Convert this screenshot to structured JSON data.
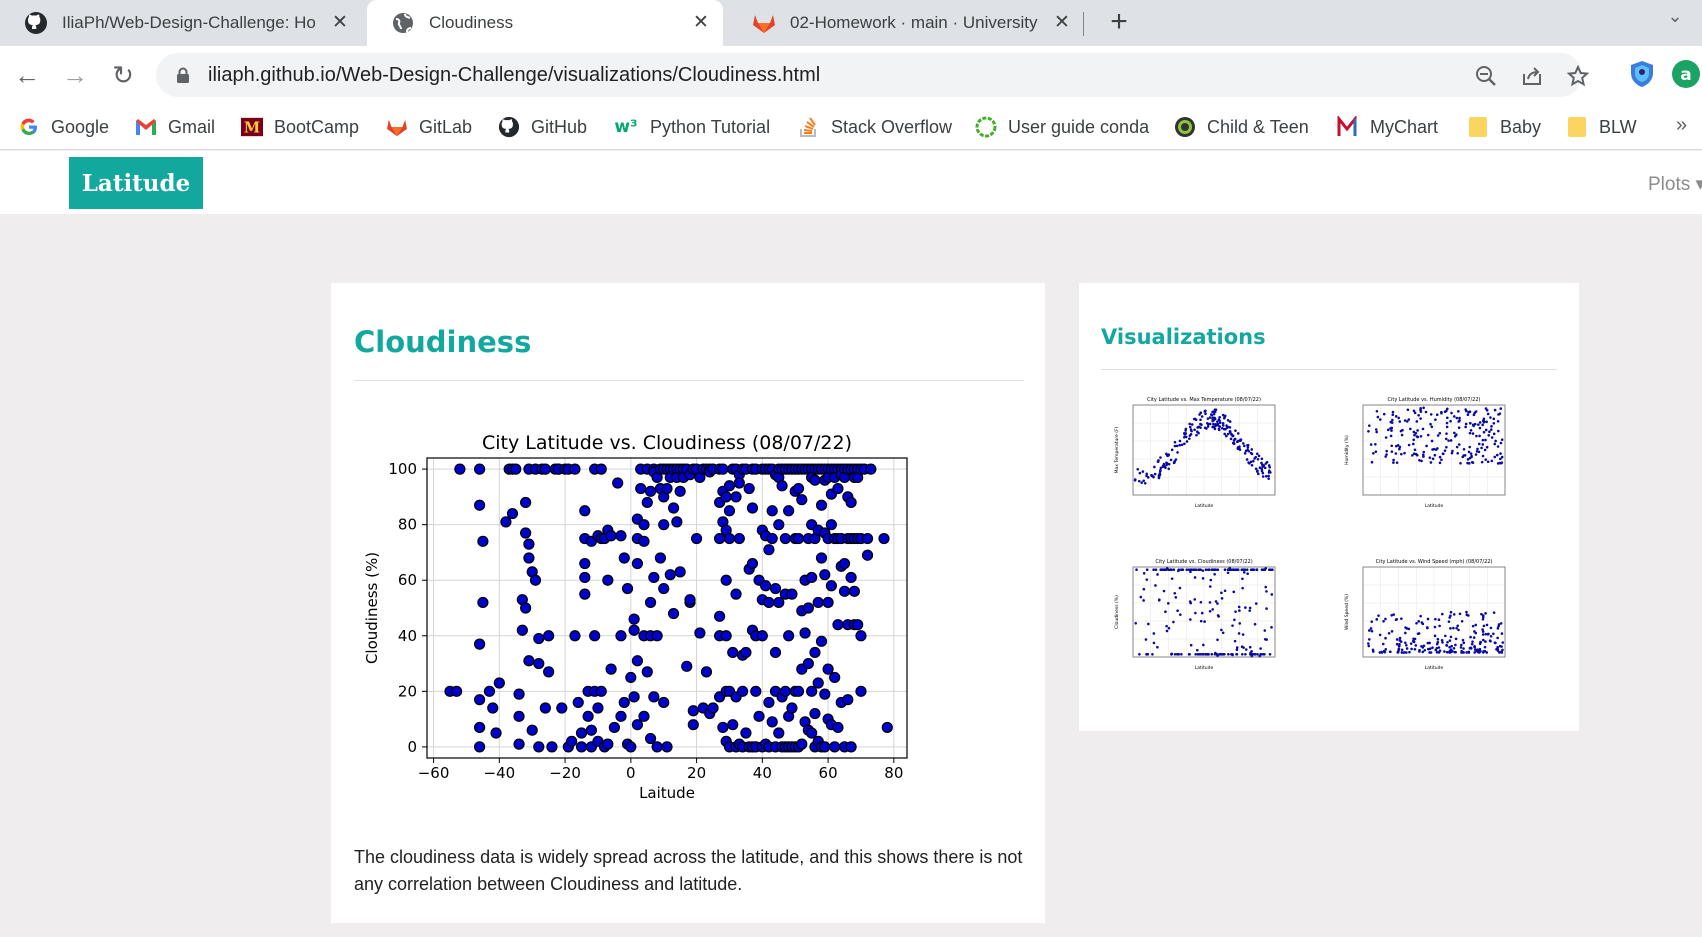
{
  "browser": {
    "tabs": [
      {
        "title": "IliaPh/Web-Design-Challenge: Ho",
        "favicon": "github-icon",
        "active": false
      },
      {
        "title": "Cloudiness",
        "favicon": "globe-icon",
        "active": true
      },
      {
        "title": "02-Homework · main · University",
        "favicon": "gitlab-icon",
        "active": false
      }
    ],
    "new_tab": "+",
    "url_host": "iliaph.github.io",
    "url_path": "/Web-Design-Challenge/visualizations/Cloudiness.html",
    "bookmarks": [
      {
        "label": "Google",
        "icon": "google-icon"
      },
      {
        "label": "Gmail",
        "icon": "gmail-icon"
      },
      {
        "label": "BootCamp",
        "icon": "umn-icon"
      },
      {
        "label": "GitLab",
        "icon": "gitlab-icon"
      },
      {
        "label": "GitHub",
        "icon": "github-icon"
      },
      {
        "label": "Python Tutorial",
        "icon": "w3-icon"
      },
      {
        "label": "Stack Overflow",
        "icon": "stackoverflow-icon"
      },
      {
        "label": "User guide conda",
        "icon": "conda-icon"
      },
      {
        "label": "Child & Teen",
        "icon": "child-teen-icon"
      },
      {
        "label": "MyChart",
        "icon": "mychart-icon"
      },
      {
        "label": "Baby",
        "icon": "folder-icon"
      },
      {
        "label": "BLW",
        "icon": "folder-icon"
      }
    ],
    "bookmarks_more": "»"
  },
  "site": {
    "brand": "Latitude",
    "nav_plots": "Plots ▾",
    "accent": "#13a89e"
  },
  "main": {
    "title": "Cloudiness",
    "description": "The cloudiness data is widely spread across the latitude, and this shows there is not any correlation between Cloudiness and latitude."
  },
  "sidebar": {
    "title": "Visualizations",
    "thumbnails": [
      {
        "title": "City Latitude vs. Max Temperature (08/07/22)",
        "ylabel": "Max Temperature (F)",
        "xlabel": "Latitude"
      },
      {
        "title": "City Latitude vs. Humidity (08/07/22)",
        "ylabel": "Humidity (%)",
        "xlabel": "Latitude"
      },
      {
        "title": "City Latitude vs. Cloudiness (08/07/22)",
        "ylabel": "Cloudiness (%)",
        "xlabel": "Latitude"
      },
      {
        "title": "City Latitude vs. Wind Speed (mph) (08/07/22)",
        "ylabel": "Wind Speed (%)",
        "xlabel": "Latitude"
      }
    ]
  },
  "chart_data": {
    "type": "scatter",
    "title": "City Latitude vs. Cloudiness (08/07/22)",
    "xlabel": "Laitude",
    "ylabel": "Cloudiness (%)",
    "xlim": [
      -62,
      84
    ],
    "ylim": [
      -4,
      104
    ],
    "xticks": [
      -60,
      -40,
      -20,
      0,
      20,
      40,
      60,
      80
    ],
    "yticks": [
      0,
      20,
      40,
      60,
      80,
      100
    ],
    "grid": true,
    "marker_color": "#0000cd",
    "edge_color": "#000000",
    "points": [
      [
        -55,
        20
      ],
      [
        -53,
        20
      ],
      [
        -52,
        100
      ],
      [
        -46,
        100
      ],
      [
        -46,
        87
      ],
      [
        -45,
        74
      ],
      [
        -45,
        52
      ],
      [
        -46,
        37
      ],
      [
        -46,
        17
      ],
      [
        -46,
        7
      ],
      [
        -46,
        0
      ],
      [
        -43,
        20
      ],
      [
        -42,
        14
      ],
      [
        -41,
        5
      ],
      [
        -40,
        23
      ],
      [
        -38,
        81
      ],
      [
        -37,
        100
      ],
      [
        -36,
        100
      ],
      [
        -36,
        84
      ],
      [
        -35,
        100
      ],
      [
        -34,
        19
      ],
      [
        -34,
        11
      ],
      [
        -34,
        1
      ],
      [
        -33,
        53
      ],
      [
        -33,
        42
      ],
      [
        -32,
        88
      ],
      [
        -32,
        77
      ],
      [
        -32,
        50
      ],
      [
        -31,
        100
      ],
      [
        -31,
        73
      ],
      [
        -31,
        68
      ],
      [
        -31,
        31
      ],
      [
        -30,
        63
      ],
      [
        -30,
        6
      ],
      [
        -29,
        100
      ],
      [
        -29,
        60
      ],
      [
        -28,
        39
      ],
      [
        -28,
        30
      ],
      [
        -28,
        0
      ],
      [
        -27,
        100
      ],
      [
        -26,
        100
      ],
      [
        -26,
        14
      ],
      [
        -25,
        40
      ],
      [
        -25,
        27
      ],
      [
        -24,
        0
      ],
      [
        -23,
        100
      ],
      [
        -22,
        100
      ],
      [
        -22,
        100
      ],
      [
        -21,
        14
      ],
      [
        -20,
        100
      ],
      [
        -19,
        100
      ],
      [
        -19,
        0
      ],
      [
        -18,
        2
      ],
      [
        -17,
        100
      ],
      [
        -17,
        40
      ],
      [
        -16,
        16
      ],
      [
        -15,
        5
      ],
      [
        -15,
        0
      ],
      [
        -14,
        85
      ],
      [
        -14,
        75
      ],
      [
        -14,
        66
      ],
      [
        -14,
        61
      ],
      [
        -14,
        55
      ],
      [
        -13,
        20
      ],
      [
        -13,
        11
      ],
      [
        -12,
        74
      ],
      [
        -12,
        6
      ],
      [
        -12,
        0
      ],
      [
        -11,
        100
      ],
      [
        -11,
        40
      ],
      [
        -11,
        20
      ],
      [
        -10,
        76
      ],
      [
        -10,
        14
      ],
      [
        -10,
        2
      ],
      [
        -9,
        100
      ],
      [
        -9,
        75
      ],
      [
        -9,
        20
      ],
      [
        -8,
        75
      ],
      [
        -8,
        0
      ],
      [
        -7,
        78
      ],
      [
        -7,
        60
      ],
      [
        -7,
        1
      ],
      [
        -6,
        76
      ],
      [
        -6,
        28
      ],
      [
        -5,
        7
      ],
      [
        -4,
        95
      ],
      [
        -3,
        76
      ],
      [
        -3,
        40
      ],
      [
        -3,
        11
      ],
      [
        -2,
        68
      ],
      [
        -2,
        16
      ],
      [
        -1,
        57
      ],
      [
        -1,
        1
      ],
      [
        0,
        25
      ],
      [
        0,
        0
      ],
      [
        1,
        46
      ],
      [
        1,
        42
      ],
      [
        1,
        18
      ],
      [
        2,
        82
      ],
      [
        2,
        75
      ],
      [
        2,
        66
      ],
      [
        2,
        31
      ],
      [
        2,
        8
      ],
      [
        3,
        100
      ],
      [
        3,
        93
      ],
      [
        4,
        80
      ],
      [
        4,
        74
      ],
      [
        4,
        40
      ],
      [
        4,
        11
      ],
      [
        5,
        100
      ],
      [
        5,
        88
      ],
      [
        5,
        27
      ],
      [
        6,
        92
      ],
      [
        6,
        52
      ],
      [
        6,
        40
      ],
      [
        6,
        3
      ],
      [
        7,
        100
      ],
      [
        7,
        99
      ],
      [
        7,
        61
      ],
      [
        7,
        18
      ],
      [
        8,
        97
      ],
      [
        8,
        40
      ],
      [
        8,
        0
      ],
      [
        9,
        100
      ],
      [
        9,
        93
      ],
      [
        9,
        68
      ],
      [
        10,
        100
      ],
      [
        10,
        90
      ],
      [
        10,
        80
      ],
      [
        10,
        57
      ],
      [
        10,
        16
      ],
      [
        11,
        100
      ],
      [
        11,
        93
      ],
      [
        11,
        0
      ],
      [
        12,
        100
      ],
      [
        12,
        97
      ],
      [
        12,
        62
      ],
      [
        13,
        100
      ],
      [
        13,
        86
      ],
      [
        13,
        48
      ],
      [
        14,
        100
      ],
      [
        14,
        97
      ],
      [
        14,
        81
      ],
      [
        15,
        100
      ],
      [
        15,
        92
      ],
      [
        15,
        63
      ],
      [
        16,
        100
      ],
      [
        16,
        97
      ],
      [
        17,
        100
      ],
      [
        17,
        29
      ],
      [
        18,
        98
      ],
      [
        18,
        52
      ],
      [
        18,
        53
      ],
      [
        19,
        100
      ],
      [
        19,
        13
      ],
      [
        19,
        8
      ],
      [
        20,
        100
      ],
      [
        20,
        75
      ],
      [
        21,
        97
      ],
      [
        21,
        41
      ],
      [
        22,
        100
      ],
      [
        22,
        14
      ],
      [
        23,
        100
      ],
      [
        23,
        27
      ],
      [
        24,
        100
      ],
      [
        24,
        99
      ],
      [
        24,
        12
      ],
      [
        25,
        100
      ],
      [
        25,
        14
      ],
      [
        27,
        100
      ],
      [
        27,
        88
      ],
      [
        27,
        75
      ],
      [
        27,
        47
      ],
      [
        27,
        40
      ],
      [
        27,
        18
      ],
      [
        28,
        100
      ],
      [
        28,
        92
      ],
      [
        28,
        81
      ],
      [
        28,
        7
      ],
      [
        29,
        90
      ],
      [
        29,
        78
      ],
      [
        29,
        60
      ],
      [
        29,
        40
      ],
      [
        29,
        20
      ],
      [
        29,
        2
      ],
      [
        30,
        94
      ],
      [
        30,
        85
      ],
      [
        30,
        75
      ],
      [
        30,
        20
      ],
      [
        30,
        0
      ],
      [
        31,
        100
      ],
      [
        31,
        34
      ],
      [
        31,
        8
      ],
      [
        32,
        100
      ],
      [
        32,
        90
      ],
      [
        32,
        55
      ],
      [
        32,
        18
      ],
      [
        32,
        0
      ],
      [
        33,
        98
      ],
      [
        33,
        95
      ],
      [
        33,
        75
      ],
      [
        33,
        1
      ],
      [
        34,
        100
      ],
      [
        34,
        33
      ],
      [
        34,
        20
      ],
      [
        34,
        0
      ],
      [
        35,
        100
      ],
      [
        35,
        34
      ],
      [
        35,
        5
      ],
      [
        36,
        93
      ],
      [
        36,
        64
      ],
      [
        36,
        0
      ],
      [
        37,
        100
      ],
      [
        37,
        86
      ],
      [
        37,
        66
      ],
      [
        37,
        42
      ],
      [
        37,
        0
      ],
      [
        38,
        100
      ],
      [
        38,
        40
      ],
      [
        38,
        20
      ],
      [
        38,
        0
      ],
      [
        39,
        60
      ],
      [
        39,
        11
      ],
      [
        40,
        100
      ],
      [
        40,
        78
      ],
      [
        40,
        53
      ],
      [
        40,
        40
      ],
      [
        40,
        0
      ],
      [
        41,
        100
      ],
      [
        41,
        76
      ],
      [
        41,
        58
      ],
      [
        41,
        1
      ],
      [
        42,
        100
      ],
      [
        42,
        71
      ],
      [
        42,
        52
      ],
      [
        42,
        16
      ],
      [
        42,
        0
      ],
      [
        43,
        100
      ],
      [
        43,
        85
      ],
      [
        43,
        75
      ],
      [
        43,
        9
      ],
      [
        44,
        98
      ],
      [
        44,
        57
      ],
      [
        44,
        34
      ],
      [
        44,
        20
      ],
      [
        44,
        0
      ],
      [
        45,
        100
      ],
      [
        45,
        97
      ],
      [
        45,
        80
      ],
      [
        45,
        52
      ],
      [
        45,
        5
      ],
      [
        46,
        100
      ],
      [
        46,
        94
      ],
      [
        46,
        18
      ],
      [
        46,
        0
      ],
      [
        47,
        100
      ],
      [
        47,
        75
      ],
      [
        47,
        55
      ],
      [
        47,
        20
      ],
      [
        47,
        0
      ],
      [
        48,
        100
      ],
      [
        48,
        85
      ],
      [
        48,
        40
      ],
      [
        48,
        11
      ],
      [
        48,
        0
      ],
      [
        49,
        100
      ],
      [
        49,
        55
      ],
      [
        49,
        14
      ],
      [
        49,
        0
      ],
      [
        50,
        100
      ],
      [
        50,
        92
      ],
      [
        50,
        75
      ],
      [
        50,
        20
      ],
      [
        50,
        0
      ],
      [
        51,
        100
      ],
      [
        51,
        93
      ],
      [
        51,
        75
      ],
      [
        51,
        20
      ],
      [
        51,
        0
      ],
      [
        52,
        100
      ],
      [
        52,
        89
      ],
      [
        52,
        49
      ],
      [
        52,
        28
      ],
      [
        52,
        1
      ],
      [
        53,
        100
      ],
      [
        53,
        60
      ],
      [
        53,
        41
      ],
      [
        53,
        9
      ],
      [
        54,
        100
      ],
      [
        54,
        75
      ],
      [
        54,
        50
      ],
      [
        54,
        30
      ],
      [
        54,
        6
      ],
      [
        55,
        100
      ],
      [
        55,
        97
      ],
      [
        55,
        80
      ],
      [
        55,
        61
      ],
      [
        55,
        20
      ],
      [
        55,
        5
      ],
      [
        56,
        100
      ],
      [
        56,
        96
      ],
      [
        56,
        75
      ],
      [
        56,
        34
      ],
      [
        56,
        12
      ],
      [
        56,
        0
      ],
      [
        57,
        100
      ],
      [
        57,
        78
      ],
      [
        57,
        52
      ],
      [
        57,
        23
      ],
      [
        57,
        2
      ],
      [
        58,
        100
      ],
      [
        58,
        87
      ],
      [
        58,
        68
      ],
      [
        58,
        38
      ],
      [
        58,
        0
      ],
      [
        59,
        100
      ],
      [
        59,
        96
      ],
      [
        59,
        77
      ],
      [
        59,
        62
      ],
      [
        59,
        19
      ],
      [
        59,
        0
      ],
      [
        60,
        100
      ],
      [
        60,
        97
      ],
      [
        60,
        75
      ],
      [
        60,
        52
      ],
      [
        60,
        28
      ],
      [
        60,
        10
      ],
      [
        61,
        100
      ],
      [
        61,
        91
      ],
      [
        61,
        80
      ],
      [
        61,
        58
      ],
      [
        61,
        8
      ],
      [
        62,
        100
      ],
      [
        62,
        97
      ],
      [
        62,
        75
      ],
      [
        62,
        25
      ],
      [
        62,
        0
      ],
      [
        63,
        100
      ],
      [
        63,
        93
      ],
      [
        63,
        75
      ],
      [
        63,
        44
      ],
      [
        63,
        7
      ],
      [
        64,
        100
      ],
      [
        64,
        98
      ],
      [
        64,
        75
      ],
      [
        64,
        65
      ],
      [
        64,
        16
      ],
      [
        65,
        100
      ],
      [
        65,
        97
      ],
      [
        65,
        66
      ],
      [
        65,
        56
      ],
      [
        65,
        0
      ],
      [
        66,
        100
      ],
      [
        66,
        90
      ],
      [
        66,
        75
      ],
      [
        66,
        44
      ],
      [
        66,
        17
      ],
      [
        67,
        100
      ],
      [
        67,
        88
      ],
      [
        67,
        75
      ],
      [
        67,
        61
      ],
      [
        67,
        0
      ],
      [
        68,
        100
      ],
      [
        68,
        97
      ],
      [
        68,
        75
      ],
      [
        68,
        56
      ],
      [
        68,
        44
      ],
      [
        69,
        100
      ],
      [
        69,
        97
      ],
      [
        69,
        75
      ],
      [
        69,
        44
      ],
      [
        70,
        100
      ],
      [
        70,
        75
      ],
      [
        70,
        40
      ],
      [
        70,
        20
      ],
      [
        71,
        100
      ],
      [
        72,
        75
      ],
      [
        72,
        69
      ],
      [
        73,
        100
      ],
      [
        77,
        75
      ],
      [
        78,
        7
      ]
    ]
  }
}
